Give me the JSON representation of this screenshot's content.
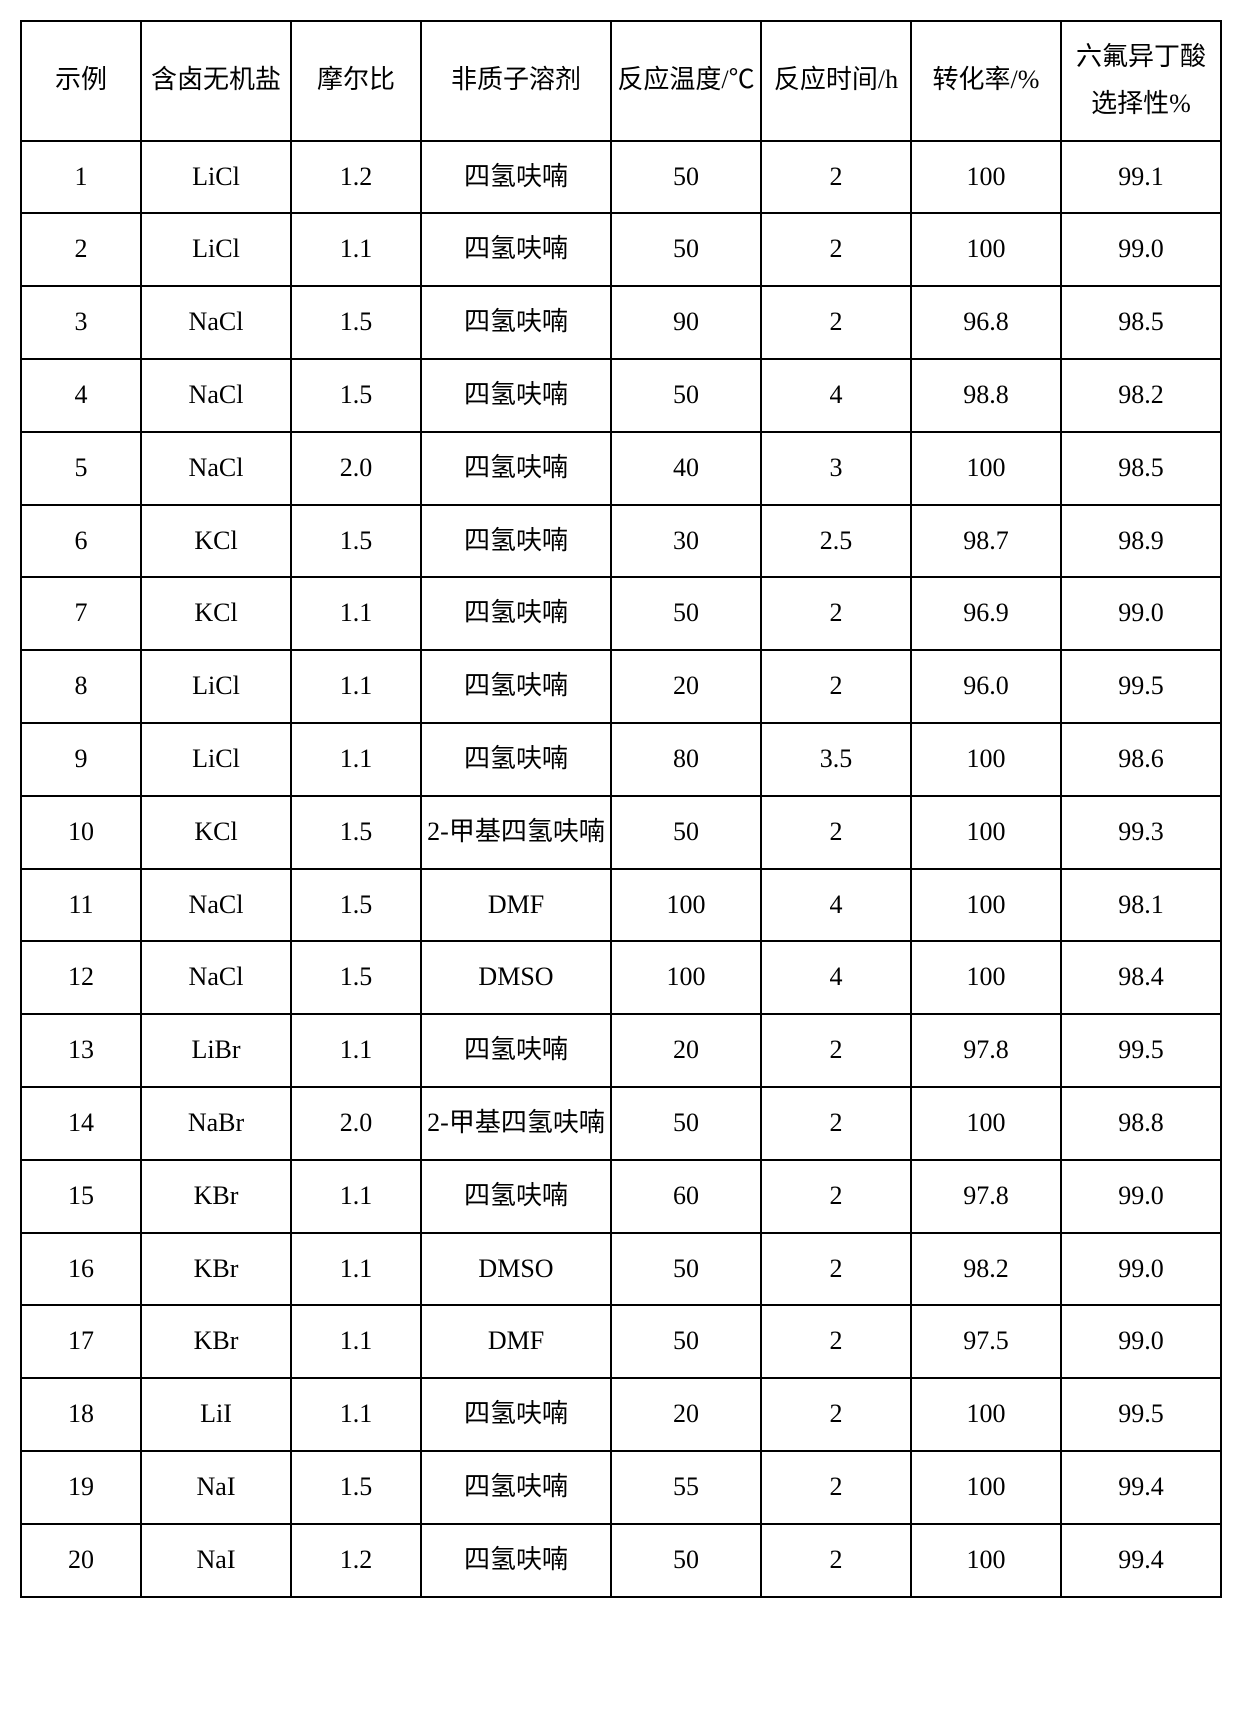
{
  "table": {
    "columns": [
      "示例",
      "含卤无机盐",
      "摩尔比",
      "非质子溶剂",
      "反应温度/℃",
      "反应时间/h",
      "转化率/%",
      "六氟异丁酸选择性%"
    ],
    "rows": [
      [
        "1",
        "LiCl",
        "1.2",
        "四氢呋喃",
        "50",
        "2",
        "100",
        "99.1"
      ],
      [
        "2",
        "LiCl",
        "1.1",
        "四氢呋喃",
        "50",
        "2",
        "100",
        "99.0"
      ],
      [
        "3",
        "NaCl",
        "1.5",
        "四氢呋喃",
        "90",
        "2",
        "96.8",
        "98.5"
      ],
      [
        "4",
        "NaCl",
        "1.5",
        "四氢呋喃",
        "50",
        "4",
        "98.8",
        "98.2"
      ],
      [
        "5",
        "NaCl",
        "2.0",
        "四氢呋喃",
        "40",
        "3",
        "100",
        "98.5"
      ],
      [
        "6",
        "KCl",
        "1.5",
        "四氢呋喃",
        "30",
        "2.5",
        "98.7",
        "98.9"
      ],
      [
        "7",
        "KCl",
        "1.1",
        "四氢呋喃",
        "50",
        "2",
        "96.9",
        "99.0"
      ],
      [
        "8",
        "LiCl",
        "1.1",
        "四氢呋喃",
        "20",
        "2",
        "96.0",
        "99.5"
      ],
      [
        "9",
        "LiCl",
        "1.1",
        "四氢呋喃",
        "80",
        "3.5",
        "100",
        "98.6"
      ],
      [
        "10",
        "KCl",
        "1.5",
        "2-甲基四氢呋喃",
        "50",
        "2",
        "100",
        "99.3"
      ],
      [
        "11",
        "NaCl",
        "1.5",
        "DMF",
        "100",
        "4",
        "100",
        "98.1"
      ],
      [
        "12",
        "NaCl",
        "1.5",
        "DMSO",
        "100",
        "4",
        "100",
        "98.4"
      ],
      [
        "13",
        "LiBr",
        "1.1",
        "四氢呋喃",
        "20",
        "2",
        "97.8",
        "99.5"
      ],
      [
        "14",
        "NaBr",
        "2.0",
        "2-甲基四氢呋喃",
        "50",
        "2",
        "100",
        "98.8"
      ],
      [
        "15",
        "KBr",
        "1.1",
        "四氢呋喃",
        "60",
        "2",
        "97.8",
        "99.0"
      ],
      [
        "16",
        "KBr",
        "1.1",
        "DMSO",
        "50",
        "2",
        "98.2",
        "99.0"
      ],
      [
        "17",
        "KBr",
        "1.1",
        "DMF",
        "50",
        "2",
        "97.5",
        "99.0"
      ],
      [
        "18",
        "LiI",
        "1.1",
        "四氢呋喃",
        "20",
        "2",
        "100",
        "99.5"
      ],
      [
        "19",
        "NaI",
        "1.5",
        "四氢呋喃",
        "55",
        "2",
        "100",
        "99.4"
      ],
      [
        "20",
        "NaI",
        "1.2",
        "四氢呋喃",
        "50",
        "2",
        "100",
        "99.4"
      ]
    ],
    "col_classes": [
      "col-example",
      "col-salt",
      "col-ratio",
      "col-solvent",
      "col-temp",
      "col-time",
      "col-conv",
      "col-sel"
    ],
    "border_color": "#000000",
    "background_color": "#ffffff",
    "font_size": 26
  }
}
